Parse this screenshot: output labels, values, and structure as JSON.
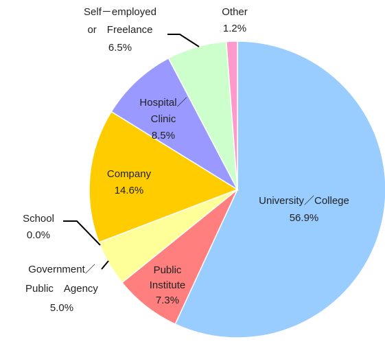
{
  "chart_data": {
    "type": "pie",
    "categories": [
      "University／College",
      "Public\nInstitute",
      "Government／\nPublic　Agency",
      "School",
      "Company",
      "Hospital／\nClinic",
      "Self－employed\nor　Freelance",
      "Other"
    ],
    "values": [
      56.9,
      7.3,
      5.0,
      0.0,
      14.6,
      8.5,
      6.5,
      1.2
    ],
    "value_labels": [
      "56.9%",
      "7.3%",
      "5.0%",
      "0.0%",
      "14.6%",
      "8.5%",
      "6.5%",
      "1.2%"
    ],
    "colors": [
      "#99ccff",
      "#ff7f7f",
      "#ffff99",
      "#ff99cc",
      "#ffcc00",
      "#9999ff",
      "#ccffcc",
      "#ff99cc"
    ]
  }
}
